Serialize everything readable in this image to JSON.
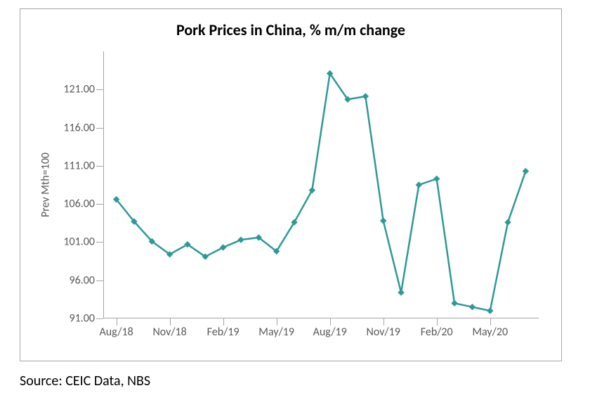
{
  "chart": {
    "type": "line",
    "title": "Pork Prices in China, % m/m change",
    "y_axis_title": "Prev Mth=100",
    "line_color": "#2e9999",
    "marker_color": "#2e9999",
    "line_width": 2.5,
    "marker_size": 4,
    "marker_style": "diamond",
    "axis_color": "#a6a6a6",
    "tick_label_color": "#595959",
    "title_color": "#000000",
    "title_fontsize": 22,
    "tick_fontsize": 16,
    "background_color": "#ffffff",
    "border_color": "#a6a6a6",
    "ylim": [
      91,
      126
    ],
    "yticks": [
      91.0,
      96.0,
      101.0,
      106.0,
      111.0,
      116.0,
      121.0
    ],
    "ytick_labels": [
      "91.00",
      "96.00",
      "101.00",
      "106.00",
      "111.00",
      "116.00",
      "121.00"
    ],
    "x_categories": [
      "Aug/18",
      "Sep/18",
      "Oct/18",
      "Nov/18",
      "Dec/18",
      "Jan/19",
      "Feb/19",
      "Mar/19",
      "Apr/19",
      "May/19",
      "Jun/19",
      "Jul/19",
      "Aug/19",
      "Sep/19",
      "Oct/19",
      "Nov/19",
      "Dec/19",
      "Jan/20",
      "Feb/20",
      "Mar/20",
      "Apr/20",
      "May/20",
      "Jun/20",
      "Jul/20"
    ],
    "x_tick_every": 3,
    "x_shown_indices": [
      0,
      3,
      6,
      9,
      12,
      15,
      18,
      21
    ],
    "x_shown_labels": [
      "Aug/18",
      "Nov/18",
      "Feb/19",
      "May/19",
      "Aug/19",
      "Nov/19",
      "Feb/20",
      "May/20"
    ],
    "values": [
      106.6,
      103.7,
      101.1,
      99.4,
      100.7,
      99.1,
      100.3,
      101.3,
      101.6,
      99.8,
      103.6,
      107.8,
      123.1,
      119.7,
      120.1,
      103.8,
      94.4,
      108.5,
      109.3,
      93.0,
      92.5,
      92.0,
      103.6,
      110.3
    ]
  },
  "source": "Source: CEIC Data, NBS"
}
